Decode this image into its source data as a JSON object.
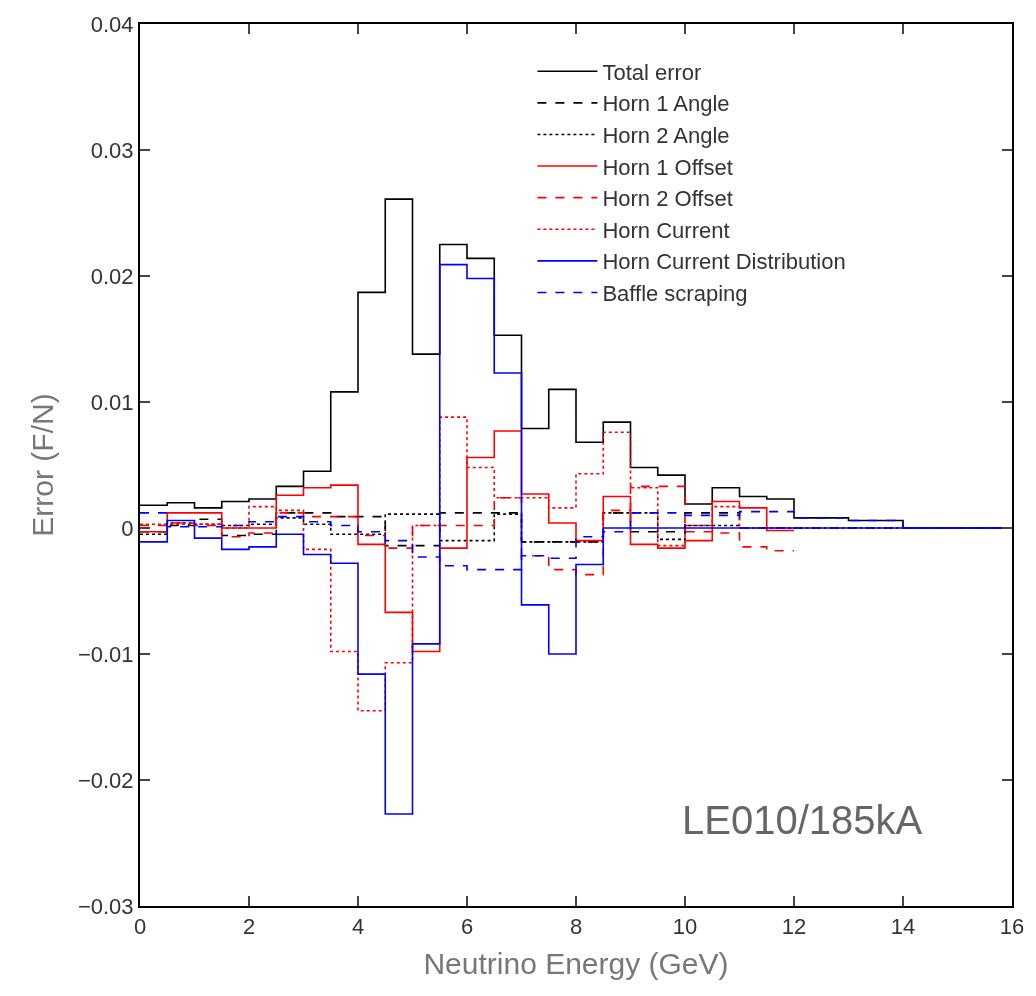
{
  "chart_data": {
    "type": "step",
    "xlabel": "Neutrino Energy (GeV)",
    "ylabel": "Error (F/N)",
    "x": [
      0,
      0.5,
      1,
      1.5,
      2,
      2.5,
      3,
      3.5,
      4,
      4.5,
      5,
      5.5,
      6,
      6.5,
      7,
      7.5,
      8,
      8.5,
      9,
      9.5,
      10,
      10.5,
      11,
      11.5,
      12,
      12.5,
      13,
      13.5,
      14,
      14.5,
      15,
      15.5,
      16
    ],
    "series": [
      {
        "name": "Total error",
        "color": "#000000",
        "line_style": "solid",
        "values": [
          0.0018,
          0.002,
          0.0016,
          0.0021,
          0.0023,
          0.0033,
          0.0045,
          0.0108,
          0.0187,
          0.0261,
          0.0138,
          0.0225,
          0.0214,
          0.0153,
          0.0079,
          0.011,
          0.0068,
          0.0084,
          0.0048,
          0.0042,
          0.0019,
          0.0032,
          0.0025,
          0.0023,
          0.0008,
          0.0008,
          0.0006,
          0.0006,
          0,
          0,
          0,
          0,
          0
        ]
      },
      {
        "name": "Horn 1 Angle",
        "color": "#000000",
        "line_style": "dashed",
        "values": [
          -0.0003,
          0.0002,
          0.0007,
          -0.0006,
          -0.0005,
          0.0012,
          0.0012,
          0.0009,
          0.0009,
          -0.0014,
          -0.0014,
          0.0012,
          0.0012,
          0.0012,
          -0.0011,
          -0.0011,
          -0.0011,
          0.0012,
          -0.0003,
          -0.0003,
          0.0012,
          0.0012,
          0,
          0,
          0,
          0,
          0,
          0,
          0,
          0,
          0,
          0,
          0
        ]
      },
      {
        "name": "Horn 2 Angle",
        "color": "#000000",
        "line_style": "dotted",
        "values": [
          -0.0005,
          0.0004,
          0.0003,
          0.0002,
          0.0003,
          0.0008,
          0.0003,
          -0.0005,
          -0.0005,
          0.0011,
          0.0011,
          -0.001,
          -0.001,
          0.0011,
          -0.0011,
          -0.0011,
          -0.0011,
          0.0012,
          0.0012,
          -0.0009,
          0.0002,
          0.0002,
          0,
          0,
          0,
          0,
          0,
          0,
          0,
          0,
          0,
          0,
          0
        ]
      },
      {
        "name": "Horn 1 Offset",
        "color": "#ff0000",
        "line_style": "solid",
        "x": [
          0,
          0.5,
          1,
          1.5,
          2,
          2.5,
          3,
          3.5,
          4,
          4.5,
          5,
          5.5,
          6,
          6.5,
          7,
          7.5,
          8,
          8.5,
          9,
          9.5,
          10,
          10.5,
          11,
          11.5,
          12
        ],
        "values": [
          -0.0003,
          0.0012,
          0.0012,
          0.0,
          0.0,
          0.0026,
          0.0032,
          0.0034,
          -0.0013,
          -0.0067,
          -0.0098,
          -0.0016,
          0.0056,
          0.0077,
          0.0027,
          0.0004,
          -0.001,
          0.0025,
          -0.0013,
          -0.0016,
          -0.001,
          0.0021,
          0.0016,
          -0.0002,
          -0.0002
        ]
      },
      {
        "name": "Horn 2 Offset",
        "color": "#ff0000",
        "line_style": "dashed",
        "x": [
          0,
          0.5,
          1,
          1.5,
          2,
          2.5,
          3,
          3.5,
          4,
          4.5,
          5,
          5.5,
          6,
          6.5,
          7,
          7.5,
          8,
          8.5,
          9,
          9.5,
          10,
          10.5,
          11,
          11.5,
          12
        ],
        "values": [
          0.0002,
          0.0004,
          0.0002,
          -0.0007,
          -0.0004,
          0.0012,
          0.0009,
          0.0009,
          -0.0006,
          -0.0016,
          0.0002,
          0.0002,
          0.0002,
          0.0024,
          -0.0022,
          -0.0033,
          -0.0037,
          0.0014,
          0.0033,
          0.0033,
          -0.0003,
          -0.0004,
          -0.0015,
          -0.0018,
          -0.0018
        ]
      },
      {
        "name": "Horn Current",
        "color": "#ff0000",
        "line_style": "dotted",
        "x": [
          0,
          0.5,
          1,
          1.5,
          2,
          2.5,
          3,
          3.5,
          4,
          4.5,
          5,
          5.5,
          6,
          6.5,
          7,
          7.5,
          8,
          8.5,
          9,
          9.5,
          10,
          10.5,
          11,
          11.5,
          12
        ],
        "values": [
          0.0003,
          0.0003,
          0.0003,
          0.0,
          0.0017,
          0.0014,
          -0.0017,
          -0.0098,
          -0.0145,
          -0.0107,
          0.0002,
          0.0088,
          0.0048,
          0.0024,
          0.0024,
          0.0016,
          0.0043,
          0.0076,
          0.0032,
          -0.0014,
          0.0002,
          0.0017,
          0.0,
          0.0,
          0.0
        ]
      },
      {
        "name": "Horn Current Distribution",
        "color": "#0000ff",
        "line_style": "solid",
        "values": [
          -0.0011,
          0.0006,
          -0.0008,
          -0.0017,
          -0.0015,
          -0.0005,
          -0.0021,
          -0.0028,
          -0.0116,
          -0.0227,
          -0.0092,
          0.0209,
          0.0198,
          0.0123,
          -0.0061,
          -0.01,
          -0.0029,
          0,
          0,
          0,
          0,
          0,
          0,
          0,
          0,
          0,
          0,
          0,
          0,
          0,
          0,
          0,
          0
        ]
      },
      {
        "name": "Baffle scraping",
        "color": "#0000ff",
        "line_style": "dashed",
        "values": [
          0.0012,
          0.0001,
          0.0001,
          0.0002,
          0.0005,
          0.0009,
          0.0005,
          0.0002,
          -0.0003,
          -0.001,
          -0.0023,
          -0.003,
          -0.0033,
          -0.0033,
          -0.0022,
          -0.0024,
          -0.0007,
          -0.0003,
          0.0012,
          0.0012,
          0.001,
          0.001,
          0.0013,
          0.0013,
          0.0008,
          0.0008,
          0.0006,
          0.0006,
          0,
          0,
          0,
          0,
          0
        ]
      }
    ],
    "xlim": [
      0,
      16
    ],
    "xticks": [
      0,
      2,
      4,
      6,
      8,
      10,
      12,
      14,
      16
    ],
    "ylim": [
      -0.03,
      0.04
    ],
    "yticks": [
      {
        "value": -0.03,
        "label": "−0.03"
      },
      {
        "value": -0.02,
        "label": "−0.02"
      },
      {
        "value": -0.01,
        "label": "−0.01"
      },
      0,
      0.01,
      0.02,
      0.03,
      0.04
    ],
    "legend": "top right",
    "marker": "none",
    "annotations": [
      "LE010/185kA"
    ]
  }
}
